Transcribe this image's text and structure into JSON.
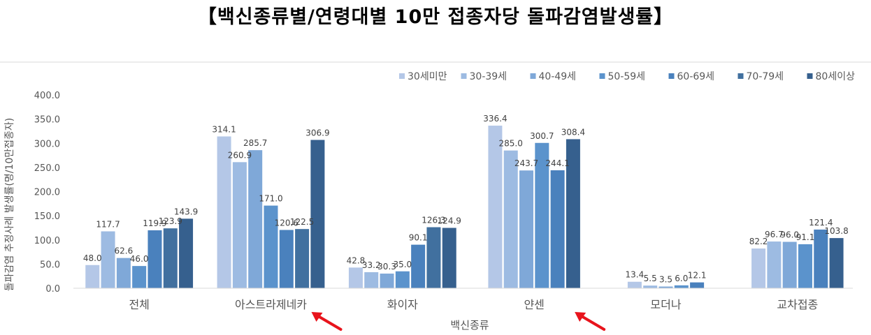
{
  "title": "【백신종류별/연령대별 10만 접종자당 돌파감염발생률】",
  "chart_data": {
    "type": "bar",
    "title": "【백신종류별/연령대별 10만 접종자당 돌파감염발생률】",
    "xlabel": "백신종류",
    "ylabel": "돌파감염 추정사례 발생률(명/10만접종자)",
    "ylim": [
      0,
      400
    ],
    "yticks": [
      "0.0",
      "50.0",
      "100.0",
      "150.0",
      "200.0",
      "250.0",
      "300.0",
      "350.0",
      "400.0"
    ],
    "grid": false,
    "legend_position": "top-right",
    "categories": [
      "전체",
      "아스트라제네카",
      "화이자",
      "얀센",
      "모더나",
      "교차접종"
    ],
    "series": [
      {
        "name": "30세미만",
        "color": "#b4c7e7",
        "values": [
          48.0,
          314.1,
          42.8,
          336.4,
          13.4,
          82.2
        ],
        "labels": [
          "48.0",
          "314.1",
          "42.8",
          "336.4",
          "13.4",
          "82.2"
        ]
      },
      {
        "name": "30-39세",
        "color": "#9dbbe2",
        "values": [
          117.7,
          260.9,
          33.2,
          285.0,
          5.5,
          96.7
        ],
        "labels": [
          "117.7",
          "260.9",
          "33.2",
          "285.0",
          "5.5",
          "96.7"
        ]
      },
      {
        "name": "40-49세",
        "color": "#7fa8d8",
        "values": [
          62.6,
          285.7,
          30.3,
          243.7,
          3.5,
          96.0
        ],
        "labels": [
          "62.6",
          "285.7",
          "30.3",
          "243.7",
          "3.5",
          "96.0"
        ]
      },
      {
        "name": "50-59세",
        "color": "#5b93cc",
        "values": [
          46.0,
          171.0,
          35.0,
          300.7,
          6.0,
          91.1
        ],
        "labels": [
          "46.0",
          "171.0",
          "35.0",
          "300.7",
          "6.0",
          "91.1"
        ]
      },
      {
        "name": "60-69세",
        "color": "#4a81bd",
        "values": [
          119.9,
          120.6,
          90.1,
          244.1,
          12.1,
          121.4
        ],
        "labels": [
          "119.9",
          "120.6",
          "90.1",
          "244.1",
          "12.1",
          "121.4"
        ]
      },
      {
        "name": "70-79세",
        "color": "#41709f",
        "values": [
          123.9,
          122.5,
          126.3,
          null,
          null,
          null
        ],
        "labels": [
          "123.9",
          "122.5",
          "126.3",
          null,
          null,
          null
        ]
      },
      {
        "name": "80세이상",
        "color": "#36608e",
        "values": [
          143.9,
          306.9,
          124.9,
          308.4,
          null,
          103.8
        ],
        "labels": [
          "143.9",
          "306.9",
          "124.9",
          "308.4",
          null,
          "103.8"
        ]
      }
    ]
  },
  "annotations": {
    "arrow_color": "#e8141c",
    "arrows": [
      {
        "target_category": "아스트라제네카"
      },
      {
        "target_category": "얀센"
      }
    ]
  }
}
